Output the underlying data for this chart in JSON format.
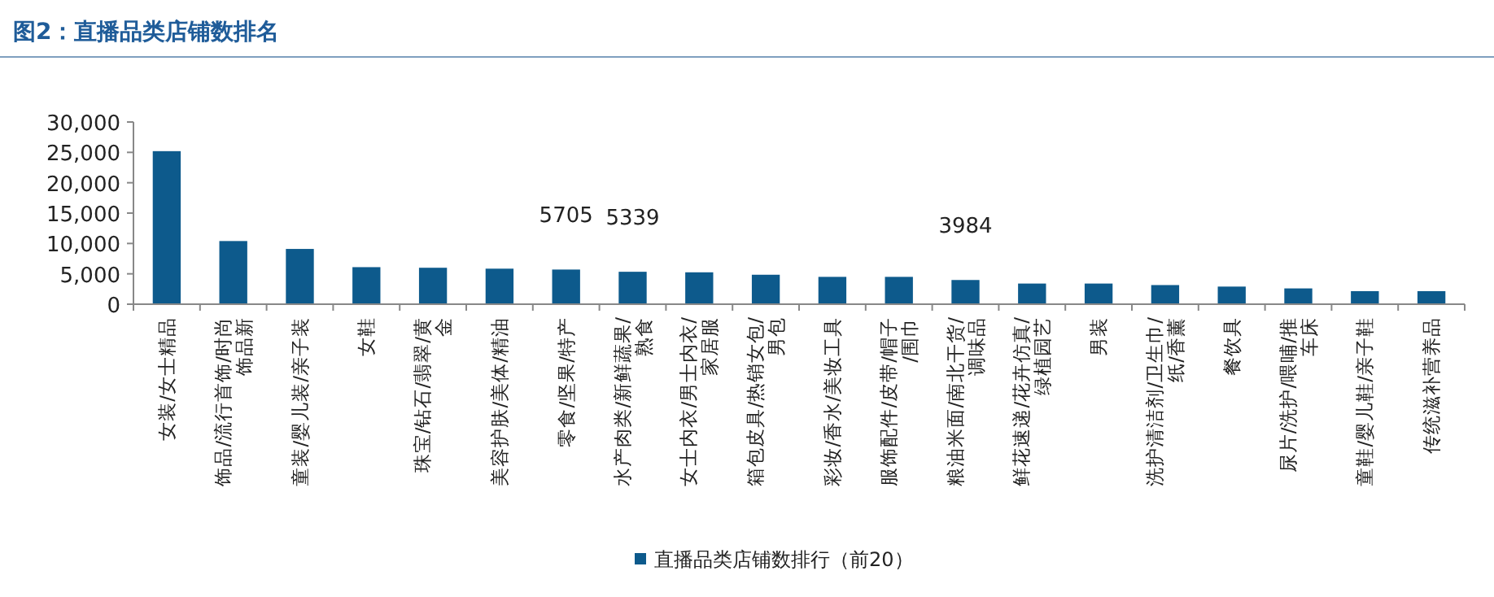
{
  "chart_data": {
    "type": "bar",
    "title": "图2：直播品类店铺数排名",
    "categories": [
      "女装/女士精品",
      "饰品/流行首饰/时尚饰品新",
      "童装/婴儿装/亲子装",
      "女鞋",
      "珠宝/钻石/翡翠/黄金",
      "美容护肤/美体/精油",
      "零食/坚果/特产",
      "水产肉类/新鲜蔬果/熟食",
      "女士内衣/男士内衣/家居服",
      "箱包皮具/热销女包/男包",
      "彩妆/香水/美妆工具",
      "服饰配件/皮带/帽子/围巾",
      "粮油米面/南北干货/调味品",
      "鲜花速递/花卉仿真/绿植园艺",
      "男装",
      "洗护清洁剂/卫生巾/纸/香薰",
      "餐饮具",
      "尿片/洗护/喂哺/推车床",
      "童鞋/婴儿鞋/亲子鞋",
      "传统滋补营养品"
    ],
    "series": [
      {
        "name": "直播品类店铺数排行（前20）",
        "color": "#0d5a8c",
        "values": [
          25200,
          10400,
          9100,
          6100,
          6000,
          5850,
          5705,
          5339,
          5250,
          4850,
          4500,
          4500,
          3984,
          3400,
          3400,
          3150,
          2900,
          2600,
          2150,
          2150
        ],
        "value_labels": [
          null,
          null,
          null,
          null,
          null,
          null,
          "5705",
          "5339",
          null,
          null,
          null,
          null,
          "3984",
          null,
          null,
          null,
          null,
          null,
          null,
          null
        ]
      }
    ],
    "ylim": [
      0,
      30000
    ],
    "yticks": [
      {
        "value": 0,
        "label": "0"
      },
      {
        "value": 5000,
        "label": "5,000"
      },
      {
        "value": 10000,
        "label": "10,000"
      },
      {
        "value": 15000,
        "label": "15,000"
      },
      {
        "value": 20000,
        "label": "20,000"
      },
      {
        "value": 25000,
        "label": "25,000"
      },
      {
        "value": 30000,
        "label": "30,000"
      }
    ],
    "grid": false,
    "legend": "bottom"
  }
}
